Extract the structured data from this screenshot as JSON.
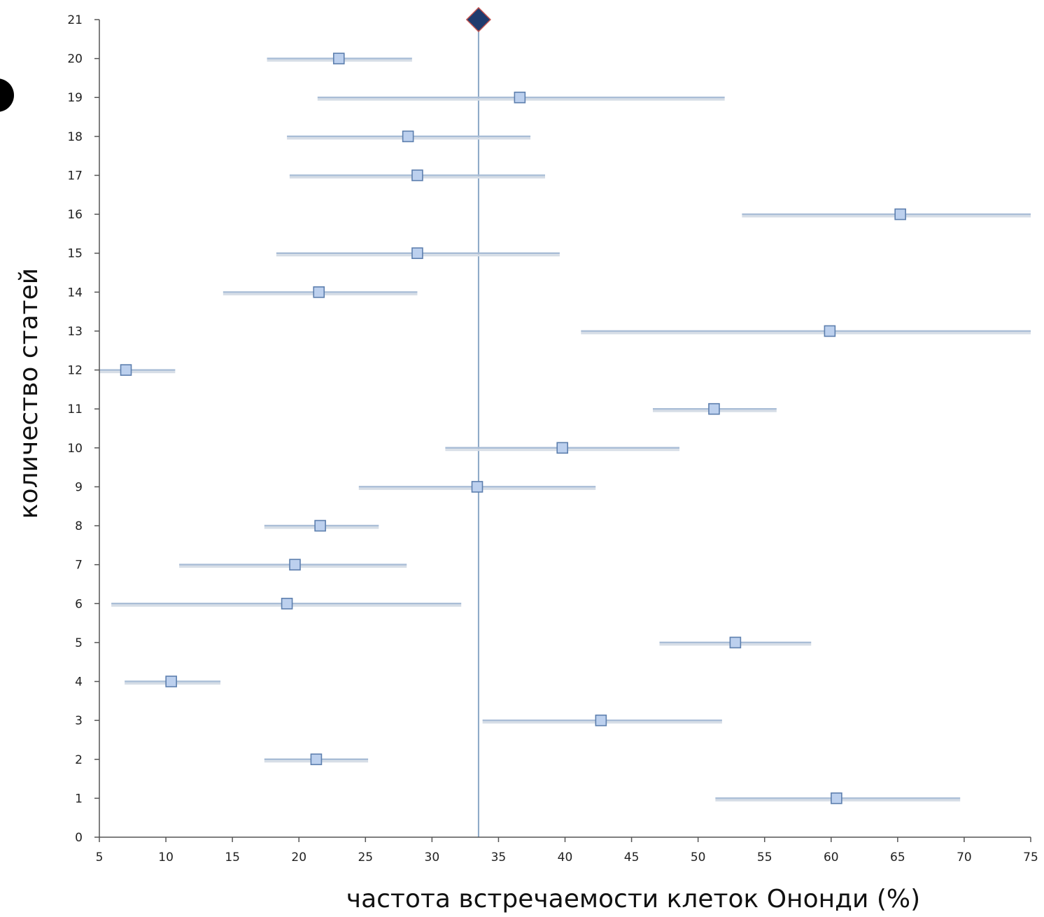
{
  "chart_data": {
    "type": "scatter",
    "subtype": "forest-plot",
    "title": "",
    "xlabel": "частота встречаемости клеток Ононди (%)",
    "ylabel": "количество статей",
    "xlim": [
      5,
      75
    ],
    "ylim": [
      0,
      21
    ],
    "xticks": [
      5,
      10,
      15,
      20,
      25,
      30,
      35,
      40,
      45,
      50,
      55,
      60,
      65,
      70,
      75
    ],
    "yticks": [
      0,
      1,
      2,
      3,
      4,
      5,
      6,
      7,
      8,
      9,
      10,
      11,
      12,
      13,
      14,
      15,
      16,
      17,
      18,
      19,
      20,
      21
    ],
    "grid": false,
    "legend": "none",
    "reference_line_x": 33.5,
    "pooled_estimate": {
      "x": 33.5,
      "y": 21
    },
    "studies": [
      {
        "y": 1,
        "x": 60.4,
        "low": 51.3,
        "high": 69.7
      },
      {
        "y": 2,
        "x": 21.3,
        "low": 17.4,
        "high": 25.2
      },
      {
        "y": 3,
        "x": 42.7,
        "low": 33.8,
        "high": 51.8
      },
      {
        "y": 4,
        "x": 10.4,
        "low": 6.9,
        "high": 14.1
      },
      {
        "y": 5,
        "x": 52.8,
        "low": 47.1,
        "high": 58.5
      },
      {
        "y": 6,
        "x": 19.1,
        "low": 5.9,
        "high": 32.2
      },
      {
        "y": 7,
        "x": 19.7,
        "low": 11.0,
        "high": 28.1
      },
      {
        "y": 8,
        "x": 21.6,
        "low": 17.4,
        "high": 26.0
      },
      {
        "y": 9,
        "x": 33.4,
        "low": 24.5,
        "high": 42.3
      },
      {
        "y": 10,
        "x": 39.8,
        "low": 31.0,
        "high": 48.6
      },
      {
        "y": 11,
        "x": 51.2,
        "low": 46.6,
        "high": 55.9
      },
      {
        "y": 12,
        "x": 7.0,
        "low": 5.0,
        "high": 10.7
      },
      {
        "y": 13,
        "x": 59.9,
        "low": 41.2,
        "high": 75.0
      },
      {
        "y": 14,
        "x": 21.5,
        "low": 14.3,
        "high": 28.9
      },
      {
        "y": 15,
        "x": 28.9,
        "low": 18.3,
        "high": 39.6
      },
      {
        "y": 16,
        "x": 65.2,
        "low": 53.3,
        "high": 75.0
      },
      {
        "y": 17,
        "x": 28.9,
        "low": 19.3,
        "high": 38.5
      },
      {
        "y": 18,
        "x": 28.2,
        "low": 19.1,
        "high": 37.4
      },
      {
        "y": 19,
        "x": 36.6,
        "low": 21.4,
        "high": 52.0
      },
      {
        "y": 20,
        "x": 23.0,
        "low": 17.6,
        "high": 28.5
      }
    ],
    "colors": {
      "axis": "#555555",
      "ci_line": "#a9bdd6",
      "ci_shadow": "#d6dde6",
      "marker_fill": "#bcd0ee",
      "marker_stroke": "#5d7fae",
      "reference_line": "#8aa7c6",
      "diamond_fill": "#1f3b6e",
      "diamond_stroke": "#c0504d"
    }
  }
}
